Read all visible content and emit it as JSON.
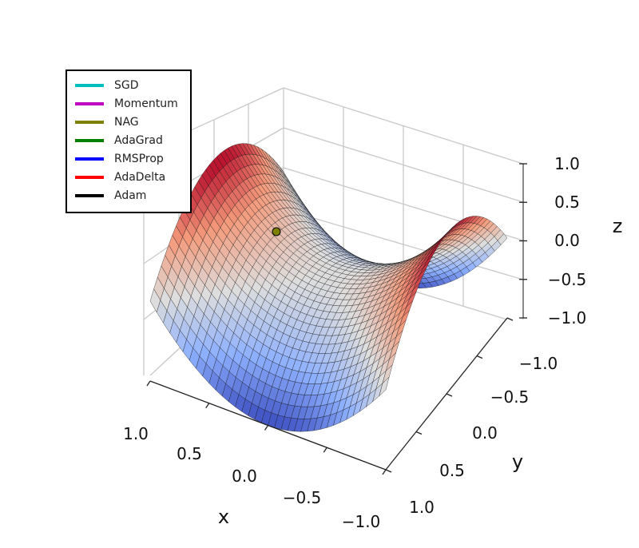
{
  "chart_data": {
    "type": "surface3d",
    "function": "z = x^2 - y^2",
    "xlabel": "x",
    "ylabel": "y",
    "zlabel": "z",
    "xlim": [
      -1,
      1
    ],
    "ylim": [
      -1,
      1
    ],
    "zlim": [
      -1,
      1
    ],
    "xticks": [
      "1.0",
      "0.5",
      "0.0",
      "−0.5",
      "−1.0"
    ],
    "yticks": [
      "−1.0",
      "−0.5",
      "0.0",
      "0.5",
      "1.0"
    ],
    "zticks": [
      "1.0",
      "0.5",
      "0.0",
      "−0.5",
      "−1.0"
    ],
    "colormap": "coolwarm",
    "grid": true,
    "legend_position": "top-left",
    "legend": [
      {
        "name": "SGD",
        "color": "#00bfbf"
      },
      {
        "name": "Momentum",
        "color": "#bf00bf"
      },
      {
        "name": "NAG",
        "color": "#808000"
      },
      {
        "name": "AdaGrad",
        "color": "#008000"
      },
      {
        "name": "RMSProp",
        "color": "#0000ff"
      },
      {
        "name": "AdaDelta",
        "color": "#ff0000"
      },
      {
        "name": "Adam",
        "color": "#000000"
      }
    ],
    "marker": {
      "series": "NAG",
      "color": "#808000"
    }
  }
}
